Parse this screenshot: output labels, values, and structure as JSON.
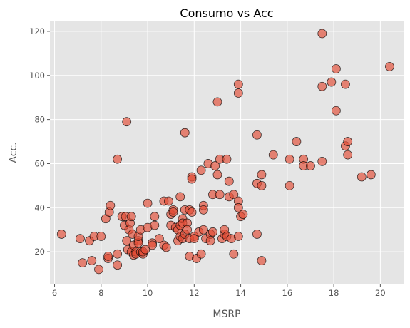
{
  "chart_data": {
    "type": "scatter",
    "title": "Consumo vs Acc",
    "xlabel": "MSRP",
    "ylabel": "Acc.",
    "xlim": [
      5.8,
      21.0
    ],
    "ylim": [
      5.5,
      124.5
    ],
    "x_ticks": [
      6,
      8,
      10,
      12,
      14,
      16,
      18,
      20
    ],
    "y_ticks": [
      20,
      40,
      60,
      80,
      100,
      120
    ],
    "grid": true,
    "legend": "none",
    "colors": {
      "background": "#e5e5e5",
      "grid": "#ffffff",
      "marker_fill": "#e24a33",
      "marker_edge": "#000000"
    },
    "points": [
      [
        6.3,
        28
      ],
      [
        7.1,
        26
      ],
      [
        7.2,
        15
      ],
      [
        7.5,
        25
      ],
      [
        7.6,
        16
      ],
      [
        7.7,
        27
      ],
      [
        7.9,
        12
      ],
      [
        8.0,
        27
      ],
      [
        8.2,
        35
      ],
      [
        8.3,
        17
      ],
      [
        8.3,
        18
      ],
      [
        8.35,
        38
      ],
      [
        8.4,
        41
      ],
      [
        8.7,
        14
      ],
      [
        8.7,
        19
      ],
      [
        8.7,
        62
      ],
      [
        8.9,
        36
      ],
      [
        9.0,
        32
      ],
      [
        9.05,
        36
      ],
      [
        9.1,
        79
      ],
      [
        9.1,
        25
      ],
      [
        9.15,
        21
      ],
      [
        9.2,
        30
      ],
      [
        9.25,
        33
      ],
      [
        9.3,
        20
      ],
      [
        9.3,
        36
      ],
      [
        9.35,
        28
      ],
      [
        9.4,
        18.5
      ],
      [
        9.4,
        23
      ],
      [
        9.5,
        20
      ],
      [
        9.5,
        19
      ],
      [
        9.6,
        25
      ],
      [
        9.6,
        24
      ],
      [
        9.6,
        27
      ],
      [
        9.7,
        20
      ],
      [
        9.7,
        30
      ],
      [
        9.8,
        19
      ],
      [
        9.8,
        20
      ],
      [
        9.9,
        21
      ],
      [
        10.0,
        31
      ],
      [
        10.0,
        42
      ],
      [
        10.2,
        24
      ],
      [
        10.2,
        23
      ],
      [
        10.3,
        36
      ],
      [
        10.3,
        32
      ],
      [
        10.5,
        26
      ],
      [
        10.7,
        23
      ],
      [
        10.7,
        43
      ],
      [
        10.8,
        22
      ],
      [
        10.9,
        43
      ],
      [
        11.0,
        37
      ],
      [
        11.0,
        32
      ],
      [
        11.1,
        39
      ],
      [
        11.1,
        38
      ],
      [
        11.2,
        31
      ],
      [
        11.3,
        30
      ],
      [
        11.3,
        25
      ],
      [
        11.4,
        45
      ],
      [
        11.4,
        32
      ],
      [
        11.4,
        27
      ],
      [
        11.5,
        35
      ],
      [
        11.5,
        33
      ],
      [
        11.5,
        26
      ],
      [
        11.6,
        39
      ],
      [
        11.6,
        28
      ],
      [
        11.6,
        74
      ],
      [
        11.7,
        33
      ],
      [
        11.7,
        30
      ],
      [
        11.8,
        39
      ],
      [
        11.8,
        26
      ],
      [
        11.8,
        18
      ],
      [
        11.9,
        38
      ],
      [
        11.9,
        54
      ],
      [
        11.9,
        53
      ],
      [
        12.0,
        27
      ],
      [
        12.0,
        26
      ],
      [
        12.1,
        17
      ],
      [
        12.2,
        29
      ],
      [
        12.3,
        19
      ],
      [
        12.3,
        57
      ],
      [
        12.4,
        41
      ],
      [
        12.4,
        39
      ],
      [
        12.4,
        30
      ],
      [
        12.5,
        26
      ],
      [
        12.6,
        60
      ],
      [
        12.7,
        28
      ],
      [
        12.7,
        25
      ],
      [
        12.8,
        29
      ],
      [
        12.8,
        46
      ],
      [
        12.9,
        59
      ],
      [
        13.0,
        88
      ],
      [
        13.0,
        55
      ],
      [
        13.1,
        46
      ],
      [
        13.1,
        62
      ],
      [
        13.2,
        26
      ],
      [
        13.3,
        28
      ],
      [
        13.3,
        30
      ],
      [
        13.4,
        62
      ],
      [
        13.4,
        27
      ],
      [
        13.5,
        52
      ],
      [
        13.5,
        45
      ],
      [
        13.6,
        26
      ],
      [
        13.7,
        46
      ],
      [
        13.7,
        19
      ],
      [
        13.9,
        96
      ],
      [
        13.9,
        92
      ],
      [
        13.9,
        43
      ],
      [
        13.9,
        40
      ],
      [
        13.9,
        27
      ],
      [
        14.0,
        36
      ],
      [
        14.1,
        37
      ],
      [
        14.7,
        73
      ],
      [
        14.7,
        51
      ],
      [
        14.7,
        28
      ],
      [
        14.9,
        50
      ],
      [
        14.9,
        55
      ],
      [
        14.9,
        16
      ],
      [
        15.4,
        64
      ],
      [
        16.1,
        50
      ],
      [
        16.1,
        62
      ],
      [
        16.4,
        70
      ],
      [
        16.7,
        62
      ],
      [
        16.7,
        59
      ],
      [
        17.0,
        59
      ],
      [
        17.5,
        119
      ],
      [
        17.5,
        95
      ],
      [
        17.5,
        61
      ],
      [
        17.9,
        97
      ],
      [
        18.1,
        103
      ],
      [
        18.1,
        84
      ],
      [
        18.5,
        96
      ],
      [
        18.5,
        68
      ],
      [
        18.6,
        70
      ],
      [
        18.6,
        64
      ],
      [
        19.2,
        54
      ],
      [
        19.6,
        55
      ],
      [
        20.4,
        104
      ]
    ]
  }
}
